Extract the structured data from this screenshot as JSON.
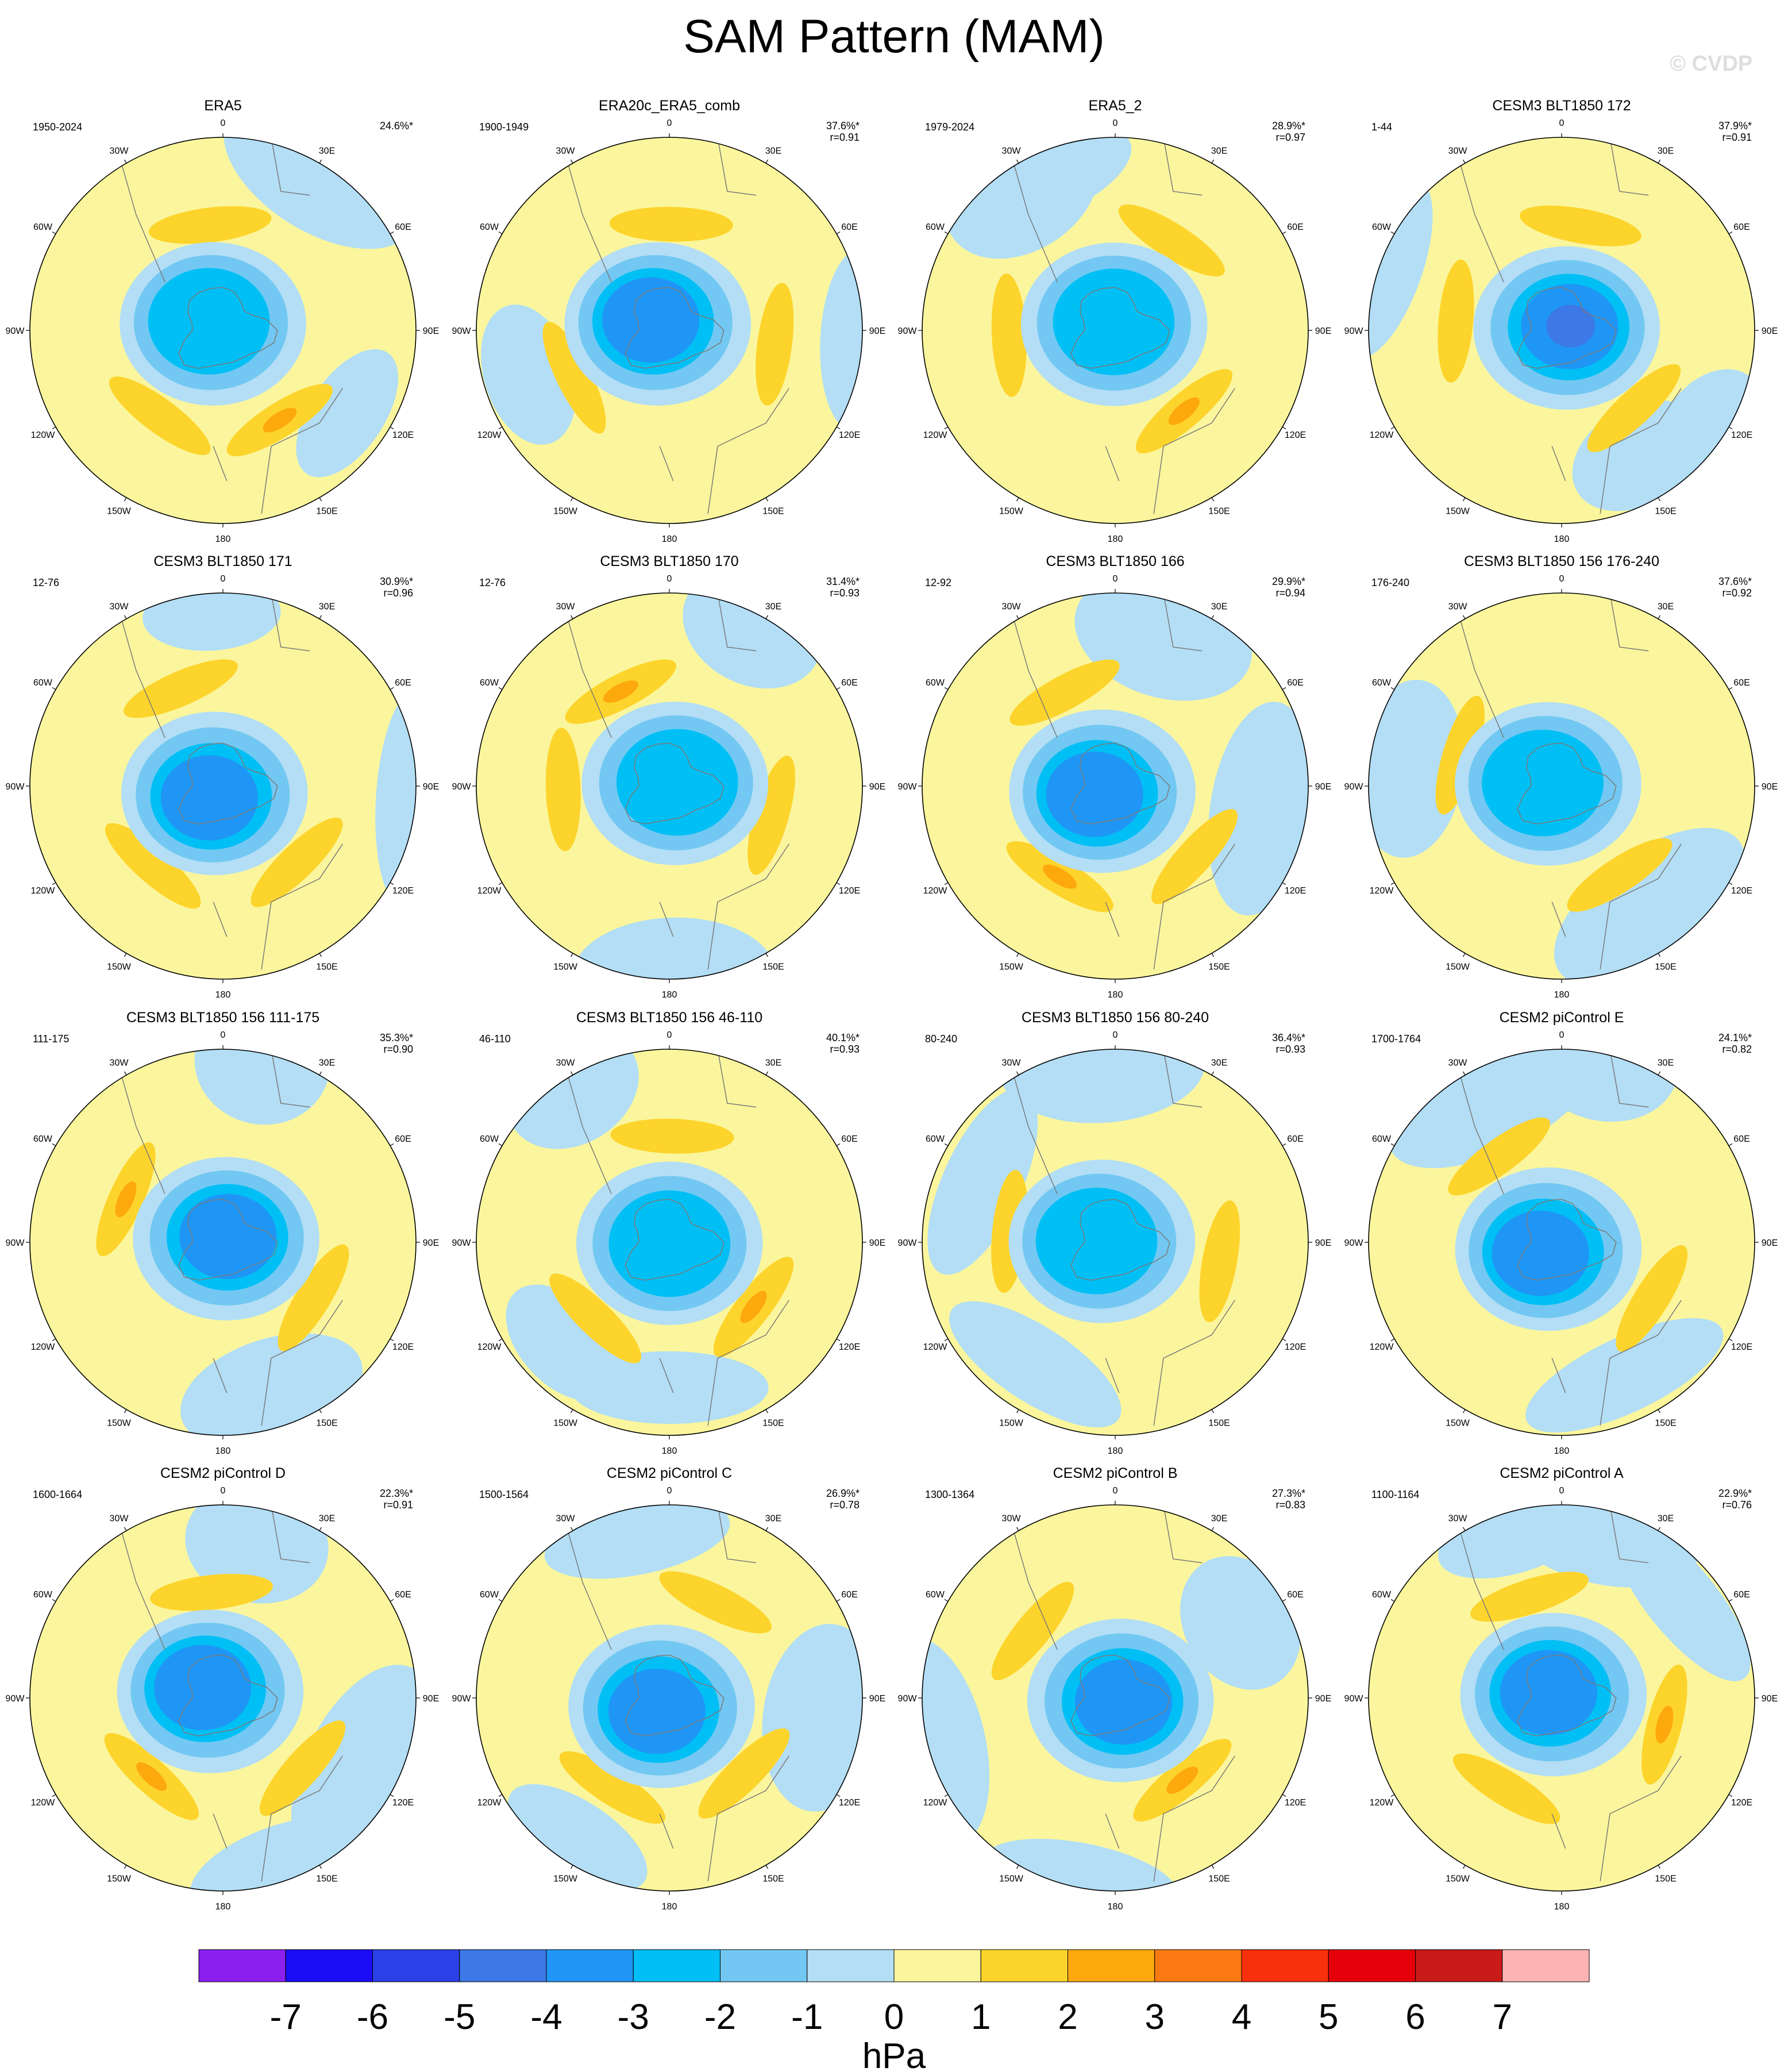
{
  "title": "SAM Pattern (MAM)",
  "watermark": "© CVDP",
  "lon_labels": [
    "0",
    "30E",
    "60E",
    "90E",
    "120E",
    "150E",
    "180",
    "150W",
    "120W",
    "90W",
    "60W",
    "30W"
  ],
  "colors": {
    "land_outline": "#7a7a7a",
    "bins": [
      "#8a1ff0",
      "#1a0df5",
      "#2b40e6",
      "#3c78e6",
      "#1f96f5",
      "#00bff5",
      "#72c8f2",
      "#b3def5",
      "#fbf69d",
      "#fdd42c",
      "#fda80d",
      "#fb7a12",
      "#f9300c",
      "#e5000a",
      "#c91a1a",
      "#fcb3b3"
    ]
  },
  "chart_data": {
    "type": "heatmap",
    "projection": "south-polar-stereographic",
    "panel_grid": {
      "rows": 4,
      "cols": 4
    },
    "panels": [
      {
        "title": "ERA5",
        "years": "1950-2024",
        "pct": "24.6%*",
        "r": ""
      },
      {
        "title": "ERA20c_ERA5_comb",
        "years": "1900-1949",
        "pct": "37.6%*",
        "r": "r=0.91"
      },
      {
        "title": "ERA5_2",
        "years": "1979-2024",
        "pct": "28.9%*",
        "r": "r=0.97"
      },
      {
        "title": "CESM3 BLT1850 172",
        "years": "1-44",
        "pct": "37.9%*",
        "r": "r=0.91"
      },
      {
        "title": "CESM3 BLT1850 171",
        "years": "12-76",
        "pct": "30.9%*",
        "r": "r=0.96"
      },
      {
        "title": "CESM3 BLT1850 170",
        "years": "12-76",
        "pct": "31.4%*",
        "r": "r=0.93"
      },
      {
        "title": "CESM3 BLT1850 166",
        "years": "12-92",
        "pct": "29.9%*",
        "r": "r=0.94"
      },
      {
        "title": "CESM3 BLT1850 156 176-240",
        "years": "176-240",
        "pct": "37.6%*",
        "r": "r=0.92"
      },
      {
        "title": "CESM3 BLT1850 156 111-175",
        "years": "111-175",
        "pct": "35.3%*",
        "r": "r=0.90"
      },
      {
        "title": "CESM3 BLT1850 156 46-110",
        "years": "46-110",
        "pct": "40.1%*",
        "r": "r=0.93"
      },
      {
        "title": "CESM3 BLT1850 156 80-240",
        "years": "80-240",
        "pct": "36.4%*",
        "r": "r=0.93"
      },
      {
        "title": "CESM2 piControl E",
        "years": "1700-1764",
        "pct": "24.1%*",
        "r": "r=0.82"
      },
      {
        "title": "CESM2 piControl D",
        "years": "1600-1664",
        "pct": "22.3%*",
        "r": "r=0.91"
      },
      {
        "title": "CESM2 piControl C",
        "years": "1500-1564",
        "pct": "26.9%*",
        "r": "r=0.78"
      },
      {
        "title": "CESM2 piControl B",
        "years": "1300-1364",
        "pct": "27.3%*",
        "r": "r=0.83"
      },
      {
        "title": "CESM2 piControl A",
        "years": "1100-1164",
        "pct": "22.9%*",
        "r": "r=0.76"
      }
    ],
    "colorbar": {
      "labels": [
        "-7",
        "-6",
        "-5",
        "-4",
        "-3",
        "-2",
        "-1",
        "0",
        "1",
        "2",
        "3",
        "4",
        "5",
        "6",
        "7"
      ],
      "unit": "hPa"
    }
  }
}
